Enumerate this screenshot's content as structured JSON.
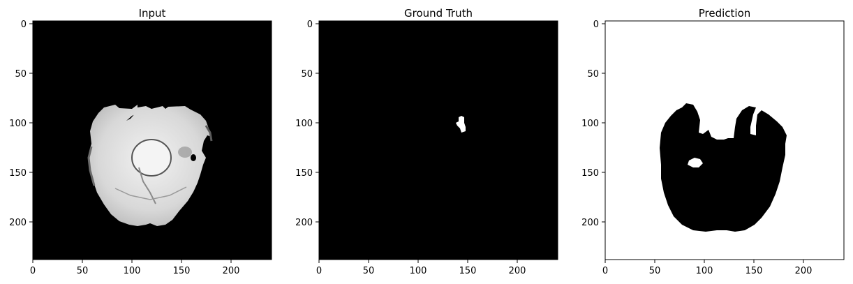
{
  "figure": {
    "panels": [
      {
        "title": "Input",
        "kind": "mri-slice",
        "background": "#000000",
        "foreground": "#e2e2e2",
        "x_ticks": [
          "0",
          "50",
          "100",
          "150",
          "200"
        ],
        "y_ticks": [
          "0",
          "50",
          "100",
          "150",
          "200"
        ]
      },
      {
        "title": "Ground Truth",
        "kind": "mask",
        "background": "#000000",
        "foreground": "#ffffff",
        "x_ticks": [
          "0",
          "50",
          "100",
          "150",
          "200"
        ],
        "y_ticks": [
          "0",
          "50",
          "100",
          "150",
          "200"
        ]
      },
      {
        "title": "Prediction",
        "kind": "mask",
        "background": "#ffffff",
        "foreground": "#000000",
        "x_ticks": [
          "0",
          "50",
          "100",
          "150",
          "200"
        ],
        "y_ticks": [
          "0",
          "50",
          "100",
          "150",
          "200"
        ]
      }
    ]
  }
}
